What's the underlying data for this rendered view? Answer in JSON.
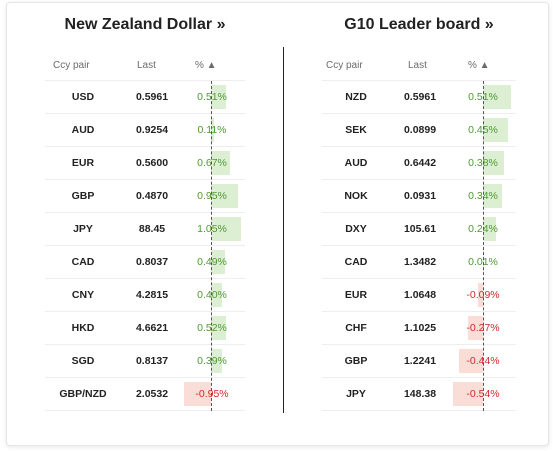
{
  "left_panel": {
    "title": "New Zealand Dollar »",
    "headers": {
      "pair": "Ccy pair",
      "last": "Last",
      "pct": "% ▲"
    },
    "rows": [
      {
        "pair": "USD",
        "last": "0.5961",
        "pct": "0.51%",
        "value": 0.51
      },
      {
        "pair": "AUD",
        "last": "0.9254",
        "pct": "0.11%",
        "value": 0.11
      },
      {
        "pair": "EUR",
        "last": "0.5600",
        "pct": "0.67%",
        "value": 0.67
      },
      {
        "pair": "GBP",
        "last": "0.4870",
        "pct": "0.95%",
        "value": 0.95
      },
      {
        "pair": "JPY",
        "last": "88.45",
        "pct": "1.05%",
        "value": 1.05
      },
      {
        "pair": "CAD",
        "last": "0.8037",
        "pct": "0.49%",
        "value": 0.49
      },
      {
        "pair": "CNY",
        "last": "4.2815",
        "pct": "0.40%",
        "value": 0.4
      },
      {
        "pair": "HKD",
        "last": "4.6621",
        "pct": "0.52%",
        "value": 0.52
      },
      {
        "pair": "SGD",
        "last": "0.8137",
        "pct": "0.39%",
        "value": 0.39
      },
      {
        "pair": "GBP/NZD",
        "last": "2.0532",
        "pct": "-0.95%",
        "value": -0.95
      }
    ]
  },
  "right_panel": {
    "title": "G10 Leader board »",
    "headers": {
      "pair": "Ccy pair",
      "last": "Last",
      "pct": "% ▲"
    },
    "rows": [
      {
        "pair": "NZD",
        "last": "0.5961",
        "pct": "0.51%",
        "value": 0.51
      },
      {
        "pair": "SEK",
        "last": "0.0899",
        "pct": "0.45%",
        "value": 0.45
      },
      {
        "pair": "AUD",
        "last": "0.6442",
        "pct": "0.38%",
        "value": 0.38
      },
      {
        "pair": "NOK",
        "last": "0.0931",
        "pct": "0.34%",
        "value": 0.34
      },
      {
        "pair": "DXY",
        "last": "105.61",
        "pct": "0.24%",
        "value": 0.24
      },
      {
        "pair": "CAD",
        "last": "1.3482",
        "pct": "0.01%",
        "value": 0.01
      },
      {
        "pair": "EUR",
        "last": "1.0648",
        "pct": "-0.09%",
        "value": -0.09
      },
      {
        "pair": "CHF",
        "last": "1.1025",
        "pct": "-0.27%",
        "value": -0.27
      },
      {
        "pair": "GBP",
        "last": "1.2241",
        "pct": "-0.44%",
        "value": -0.44
      },
      {
        "pair": "JPY",
        "last": "148.38",
        "pct": "-0.54%",
        "value": -0.54
      }
    ]
  },
  "colors": {
    "positive": "#4d9a33",
    "negative": "#d02a2a",
    "positive_bar": "#dcefd3",
    "negative_bar": "#f9ddd6"
  }
}
